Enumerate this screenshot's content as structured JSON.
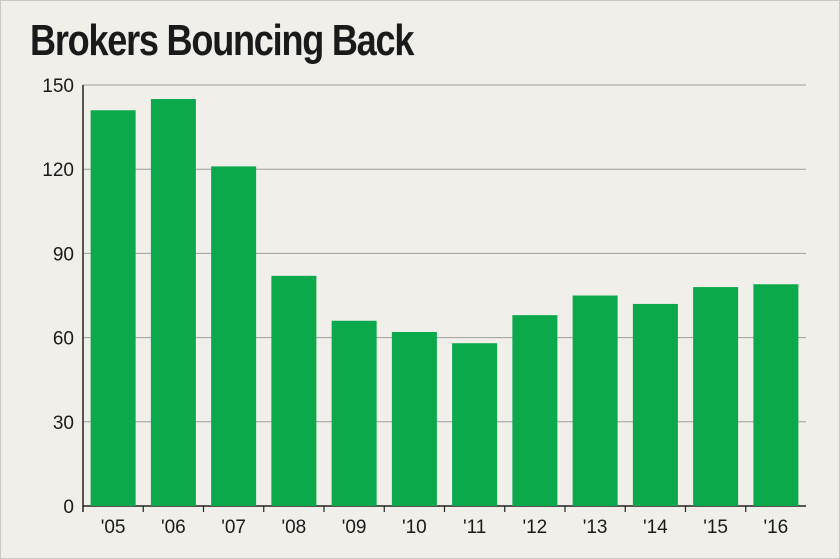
{
  "chart_data": {
    "type": "bar",
    "title": "Brokers Bouncing Back",
    "categories": [
      "'05",
      "'06",
      "'07",
      "'08",
      "'09",
      "'10",
      "'11",
      "'12",
      "'13",
      "'14",
      "'15",
      "'16"
    ],
    "values": [
      141,
      145,
      121,
      82,
      66,
      62,
      58,
      68,
      75,
      72,
      78,
      79
    ],
    "ylim": [
      0,
      150
    ],
    "yticks": [
      0,
      30,
      60,
      90,
      120,
      150
    ],
    "grid": true,
    "colors": {
      "bar": "#0ca84c",
      "grid": "#9e9e9e",
      "background": "#f0efea"
    }
  }
}
